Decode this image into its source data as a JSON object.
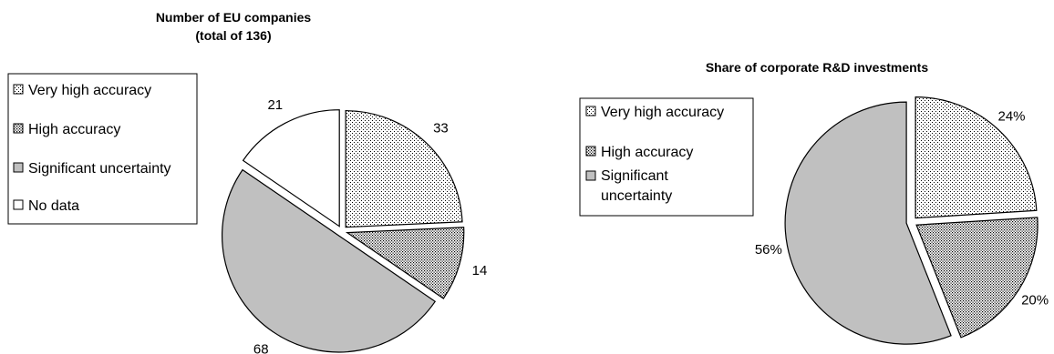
{
  "chart_data": [
    {
      "type": "pie",
      "title": [
        "Number of EU companies",
        "(total of 136)"
      ],
      "categories": [
        "Very high accuracy",
        "High accuracy",
        "Significant uncertainty",
        "No data"
      ],
      "values": [
        33,
        14,
        68,
        21
      ],
      "labels": [
        "33",
        "14",
        "68",
        "21"
      ],
      "legend": [
        "Very high accuracy",
        "High accuracy",
        "Significant uncertainty",
        "No data"
      ],
      "legend_placement": "left",
      "exploded": true
    },
    {
      "type": "pie",
      "title": [
        "Share of corporate R&D investments"
      ],
      "categories": [
        "Very high accuracy",
        "High accuracy",
        "Significant uncertainty"
      ],
      "values": [
        24,
        20,
        56
      ],
      "labels": [
        "24%",
        "20%",
        "56%"
      ],
      "legend": [
        [
          "Very high accuracy"
        ],
        [
          "High accuracy"
        ],
        [
          "Significant",
          "uncertainty"
        ]
      ],
      "legend_placement": "left",
      "exploded": true
    }
  ],
  "styles": {
    "fills": [
      "pattern-dots-sparse",
      "pattern-dots-dense",
      "#c0c0c0",
      "#ffffff"
    ],
    "stroke": "#000000"
  }
}
